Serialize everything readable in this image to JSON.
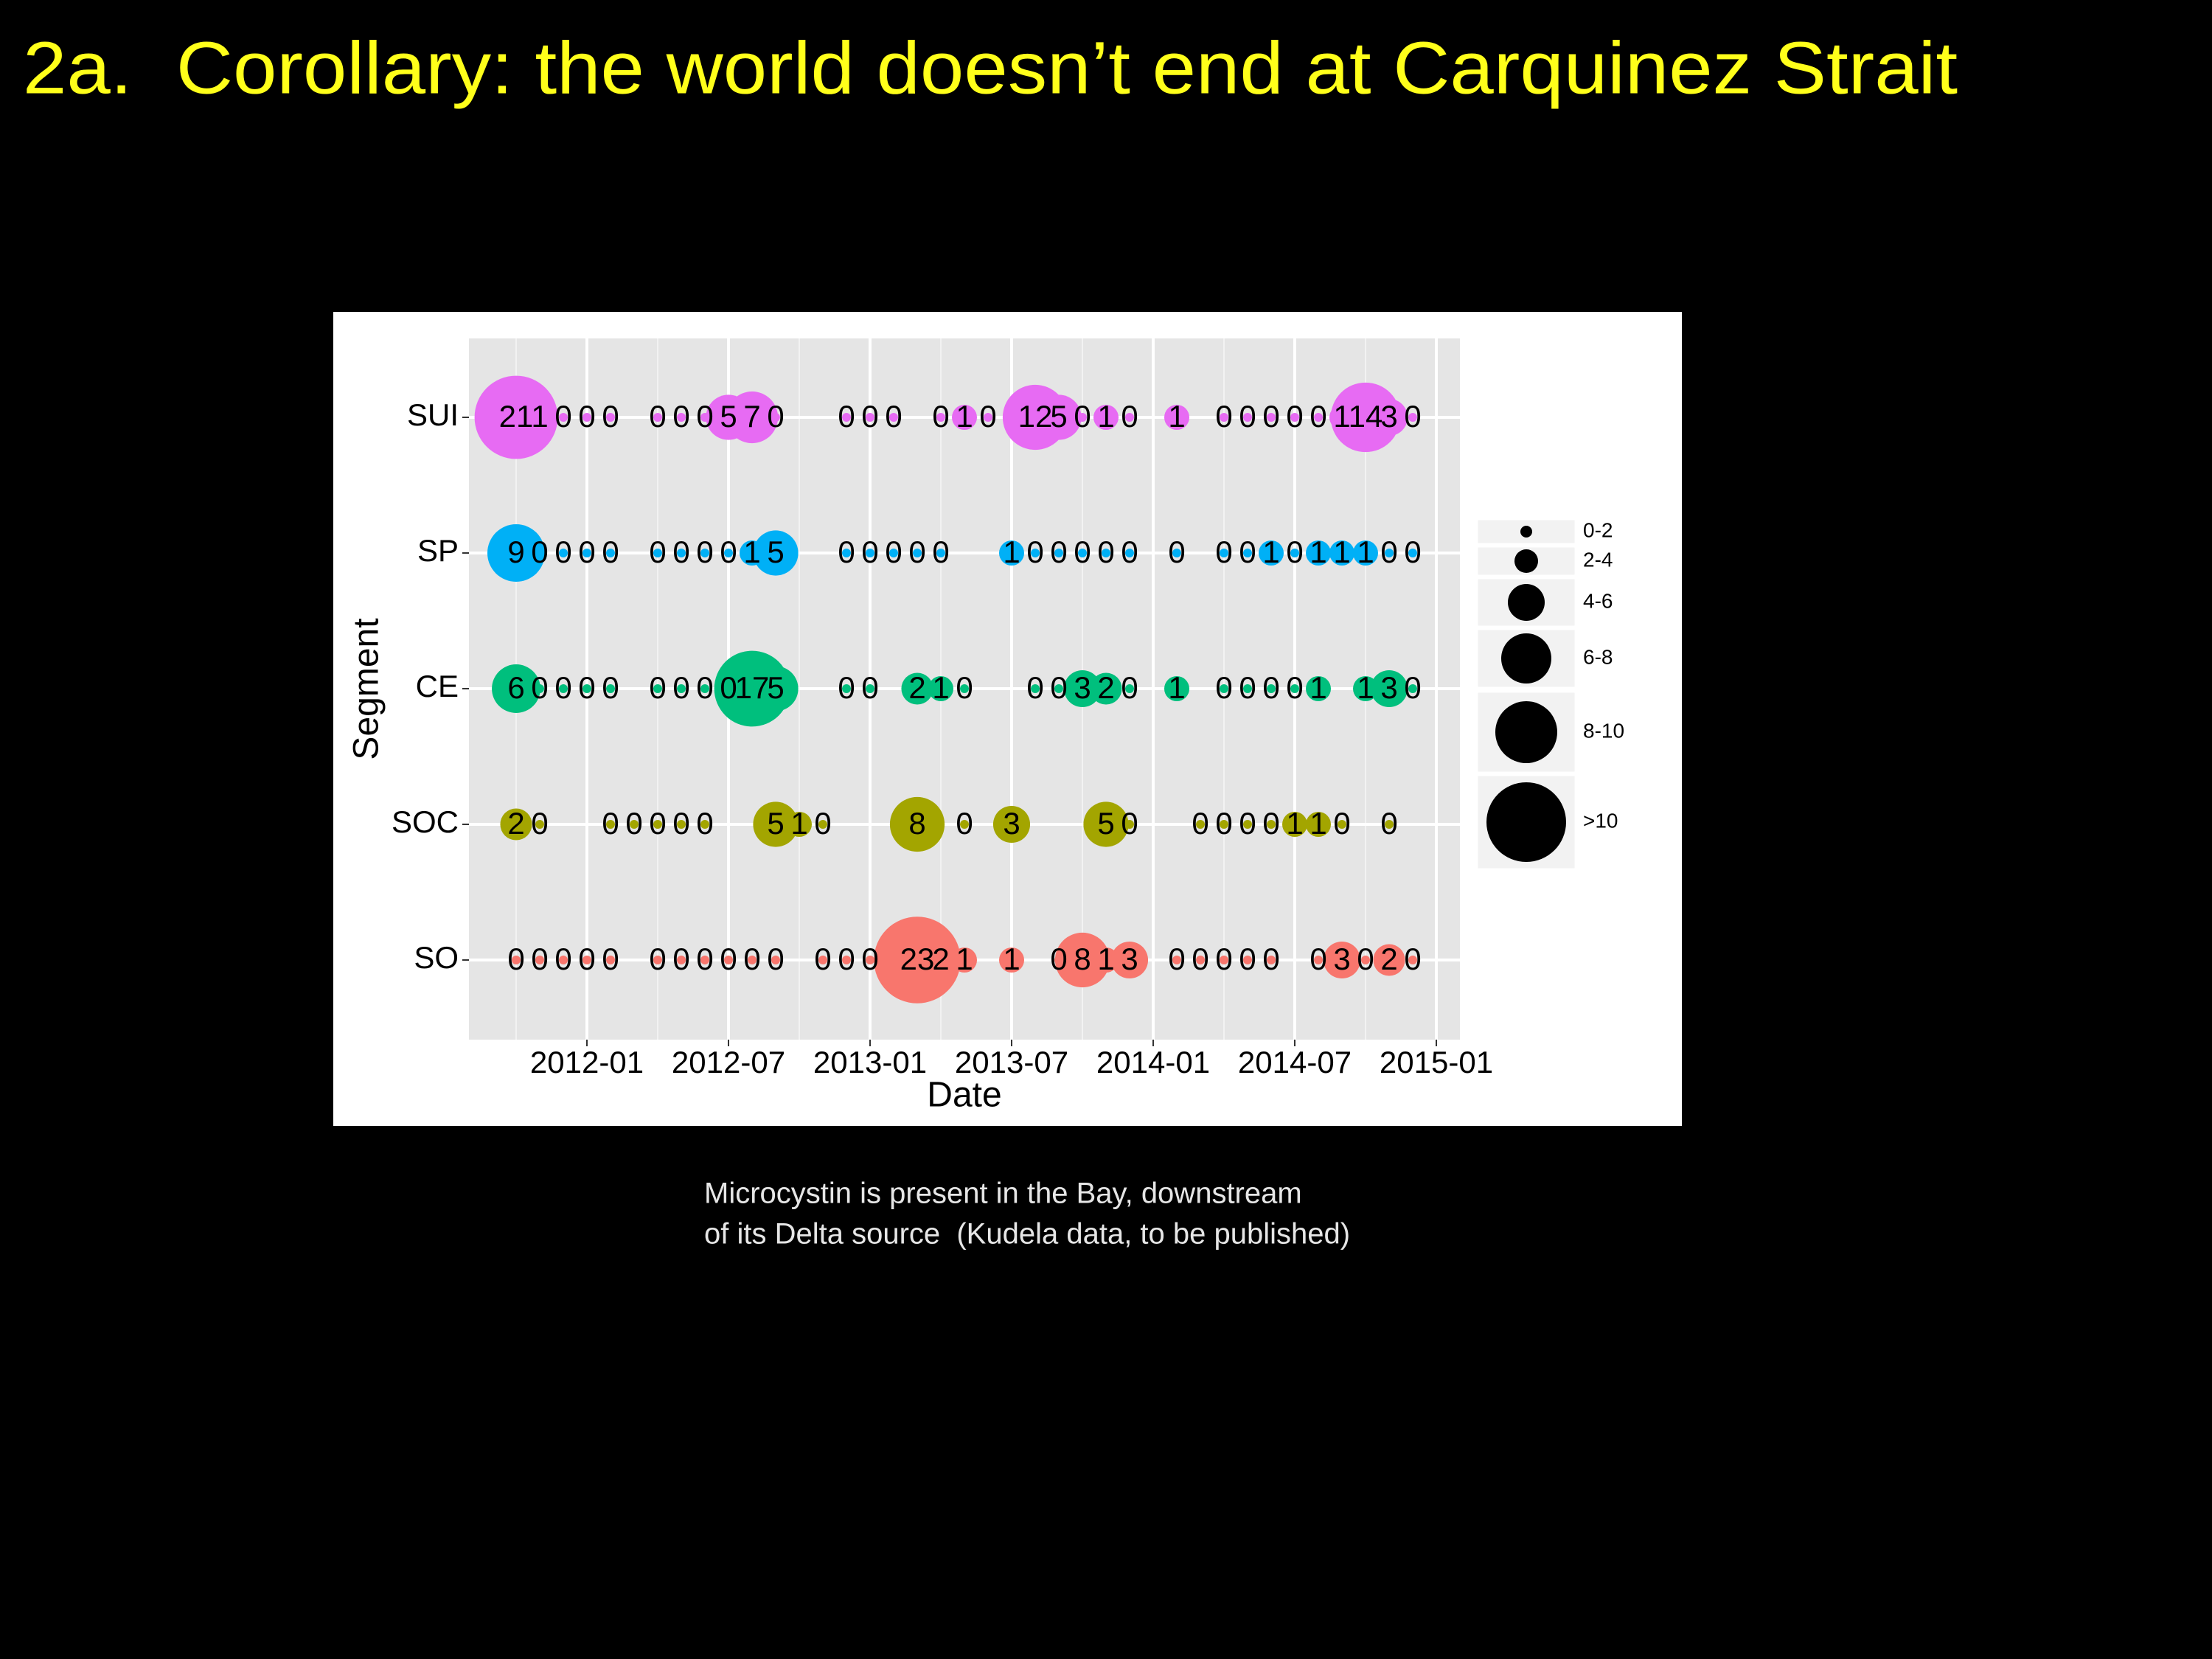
{
  "slide": {
    "title": "2a.  Corollary: the world doesn’t end at Carquinez Strait",
    "caption": [
      "Microcystin is present in the Bay, downstream",
      "of its Delta source  (Kudela data, to be published)"
    ]
  },
  "chart_data": {
    "type": "bubble",
    "x_label": "Date",
    "y_label": "Segment",
    "xlim": [
      "2011-08",
      "2015-02"
    ],
    "xticks": [
      "2012-01",
      "2012-07",
      "2013-01",
      "2013-07",
      "2014-01",
      "2014-07",
      "2015-01"
    ],
    "grid": true,
    "size_legend": [
      "0-2",
      "2-4",
      "4-6",
      "6-8",
      "8-10",
      ">10"
    ],
    "series": [
      {
        "name": "SUI",
        "color": "#e76bf3",
        "x": [
          "2011-10",
          "2011-11",
          "2011-12",
          "2012-01",
          "2012-02",
          "2012-04",
          "2012-05",
          "2012-06",
          "2012-07",
          "2012-08",
          "2012-09",
          "2012-12",
          "2013-01",
          "2013-02",
          "2013-04",
          "2013-05",
          "2013-06",
          "2013-08",
          "2013-09",
          "2013-10",
          "2013-11",
          "2013-12",
          "2014-02",
          "2014-04",
          "2014-05",
          "2014-06",
          "2014-07",
          "2014-08",
          "2014-09",
          "2014-10",
          "2014-11",
          "2014-12"
        ],
        "values": [
          21,
          1,
          0,
          0,
          0,
          0,
          0,
          0,
          5,
          7,
          0,
          0,
          0,
          0,
          0,
          1,
          0,
          12,
          5,
          0,
          1,
          0,
          1,
          0,
          0,
          0,
          0,
          0,
          1,
          14,
          3,
          0
        ]
      },
      {
        "name": "SP",
        "color": "#00b0f6",
        "x": [
          "2011-10",
          "2011-11",
          "2011-12",
          "2012-01",
          "2012-02",
          "2012-04",
          "2012-05",
          "2012-06",
          "2012-07",
          "2012-08",
          "2012-09",
          "2012-12",
          "2013-01",
          "2013-02",
          "2013-03",
          "2013-04",
          "2013-07",
          "2013-08",
          "2013-09",
          "2013-10",
          "2013-11",
          "2013-12",
          "2014-02",
          "2014-04",
          "2014-05",
          "2014-06",
          "2014-07",
          "2014-08",
          "2014-09",
          "2014-10",
          "2014-11",
          "2014-12"
        ],
        "values": [
          9,
          0,
          0,
          0,
          0,
          0,
          0,
          0,
          0,
          1,
          5,
          0,
          0,
          0,
          0,
          0,
          1,
          0,
          0,
          0,
          0,
          0,
          0,
          0,
          0,
          1,
          0,
          1,
          1,
          1,
          0,
          0
        ]
      },
      {
        "name": "CE",
        "color": "#00bf7d",
        "x": [
          "2011-10",
          "2011-11",
          "2011-12",
          "2012-01",
          "2012-02",
          "2012-04",
          "2012-05",
          "2012-06",
          "2012-07",
          "2012-08",
          "2012-09",
          "2012-12",
          "2013-01",
          "2013-03",
          "2013-04",
          "2013-05",
          "2013-08",
          "2013-09",
          "2013-10",
          "2013-11",
          "2013-12",
          "2014-02",
          "2014-04",
          "2014-05",
          "2014-06",
          "2014-07",
          "2014-08",
          "2014-10",
          "2014-11",
          "2014-12"
        ],
        "values": [
          6,
          0,
          0,
          0,
          0,
          0,
          0,
          0,
          0,
          17,
          5,
          0,
          0,
          2,
          1,
          0,
          0,
          0,
          3,
          2,
          0,
          1,
          0,
          0,
          0,
          0,
          1,
          1,
          3,
          0
        ]
      },
      {
        "name": "SOC",
        "color": "#a3a500",
        "x": [
          "2011-10",
          "2011-11",
          "2012-02",
          "2012-03",
          "2012-04",
          "2012-05",
          "2012-06",
          "2012-09",
          "2012-10",
          "2012-11",
          "2013-03",
          "2013-05",
          "2013-07",
          "2013-11",
          "2013-12",
          "2014-03",
          "2014-04",
          "2014-05",
          "2014-06",
          "2014-07",
          "2014-08",
          "2014-09",
          "2014-11"
        ],
        "values": [
          2,
          0,
          0,
          0,
          0,
          0,
          0,
          5,
          1,
          0,
          8,
          0,
          3,
          5,
          0,
          0,
          0,
          0,
          0,
          1,
          1,
          0,
          0
        ]
      },
      {
        "name": "SO",
        "color": "#f8766d",
        "x": [
          "2011-10",
          "2011-11",
          "2011-12",
          "2012-01",
          "2012-02",
          "2012-04",
          "2012-05",
          "2012-06",
          "2012-07",
          "2012-08",
          "2012-09",
          "2012-11",
          "2012-12",
          "2013-01",
          "2013-03",
          "2013-04",
          "2013-05",
          "2013-07",
          "2013-09",
          "2013-10",
          "2013-11",
          "2013-12",
          "2014-02",
          "2014-03",
          "2014-04",
          "2014-05",
          "2014-06",
          "2014-08",
          "2014-09",
          "2014-10",
          "2014-11",
          "2014-12"
        ],
        "values": [
          0,
          0,
          0,
          0,
          0,
          0,
          0,
          0,
          0,
          0,
          0,
          0,
          0,
          0,
          23,
          2,
          1,
          1,
          0,
          8,
          1,
          3,
          0,
          0,
          0,
          0,
          0,
          0,
          3,
          0,
          2,
          0
        ]
      }
    ]
  }
}
